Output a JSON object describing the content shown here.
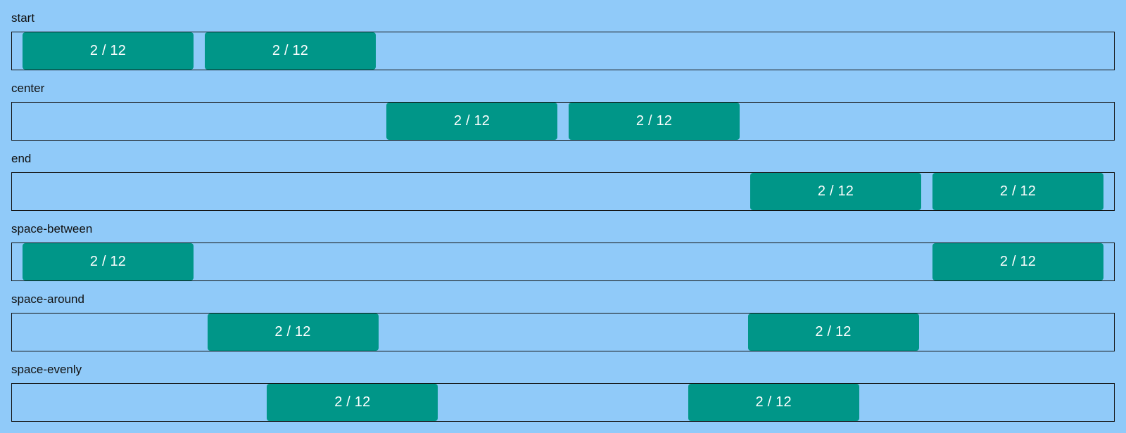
{
  "colors": {
    "background": "#90caf9",
    "item": "#009688",
    "border": "#111111",
    "label_text": "#111111",
    "item_text": "#ffffff"
  },
  "sections": [
    {
      "label": "start",
      "items": [
        "2 / 12",
        "2 / 12"
      ]
    },
    {
      "label": "center",
      "items": [
        "2 / 12",
        "2 / 12"
      ]
    },
    {
      "label": "end",
      "items": [
        "2 / 12",
        "2 / 12"
      ]
    },
    {
      "label": "space-between",
      "items": [
        "2 / 12",
        "2 / 12"
      ]
    },
    {
      "label": "space-around",
      "items": [
        "2 / 12",
        "2 / 12"
      ]
    },
    {
      "label": "space-evenly",
      "items": [
        "2 / 12",
        "2 / 12"
      ]
    }
  ]
}
